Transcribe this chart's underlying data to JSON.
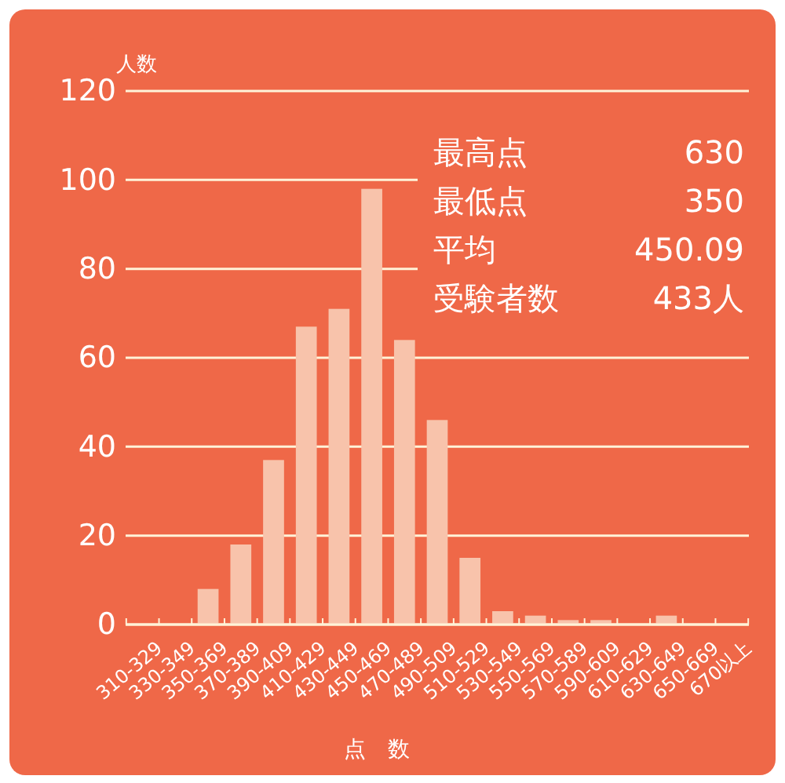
{
  "chart_data": {
    "type": "bar",
    "categories": [
      "310-329",
      "330-349",
      "350-369",
      "370-389",
      "390-409",
      "410-429",
      "430-449",
      "450-469",
      "470-489",
      "490-509",
      "510-529",
      "530-549",
      "550-569",
      "570-589",
      "590-609",
      "610-629",
      "630-649",
      "650-669",
      "670以上"
    ],
    "values": [
      0,
      0,
      8,
      18,
      37,
      67,
      71,
      98,
      64,
      46,
      15,
      3,
      2,
      1,
      1,
      0,
      2,
      0,
      0
    ],
    "color": "#f8c3ab",
    "ylim": [
      0,
      120
    ],
    "yticks": [
      0,
      20,
      40,
      60,
      80,
      100,
      120
    ],
    "grid": "y",
    "ylabel": "人数",
    "xlabel": "点　数",
    "annotations": [
      "最高点",
      "630",
      "最低点",
      "350",
      "平均",
      "450.09",
      "受験者数",
      "433人"
    ]
  }
}
